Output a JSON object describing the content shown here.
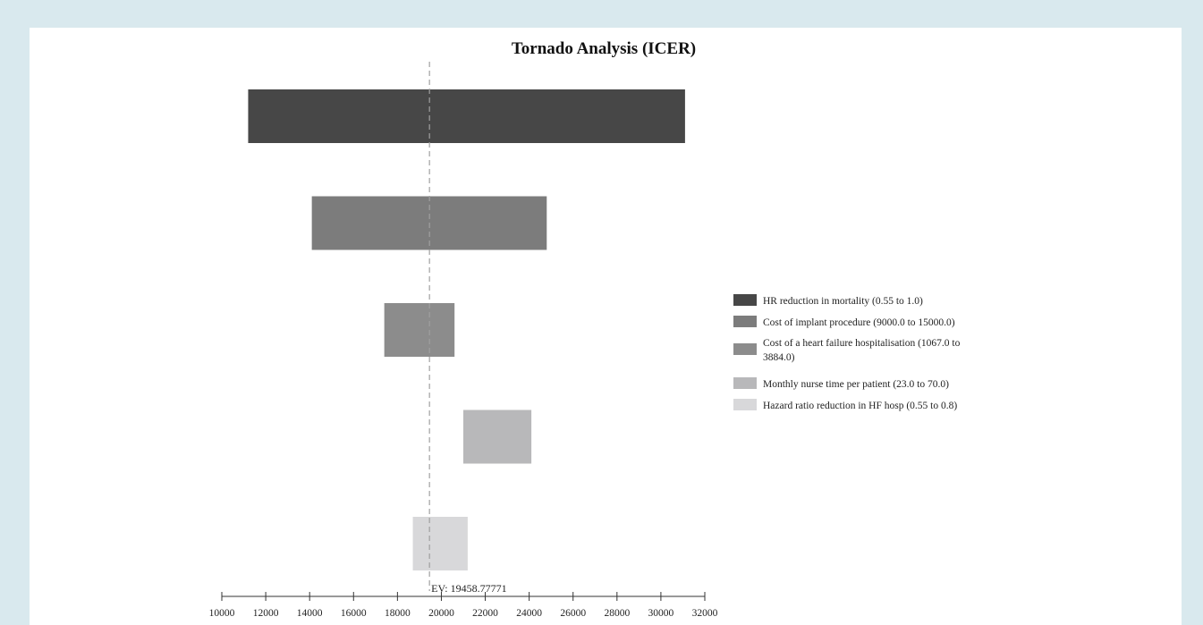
{
  "chart_data": {
    "type": "bar",
    "orientation": "horizontal",
    "chart_style": "tornado",
    "title": "Tornado Analysis (ICER)",
    "xlim": [
      10000,
      32000
    ],
    "x_ticks": [
      10000,
      12000,
      14000,
      16000,
      18000,
      20000,
      22000,
      24000,
      26000,
      28000,
      30000,
      32000
    ],
    "x_tick_labels": [
      "10000",
      "12000",
      "14000",
      "16000",
      "18000",
      "20000",
      "22000",
      "24000",
      "26000",
      "28000",
      "30000",
      "32000"
    ],
    "expected_value": 19458.77771,
    "ev_label": "EV: 19458.77771",
    "legend_position": "right",
    "series": [
      {
        "name": "HR reduction in mortality (0.55 to 1.0)",
        "low": 11200,
        "high": 31100,
        "color": "#474747"
      },
      {
        "name": "Cost of implant procedure (9000.0 to 15000.0)",
        "low": 14100,
        "high": 24800,
        "color": "#7c7c7c"
      },
      {
        "name": "Cost of a heart failure hospitalisation (1067.0 to 3884.0)",
        "name_lines": [
          "Cost of a heart failure hospitalisation (1067.0 to",
          "3884.0)"
        ],
        "low": 17400,
        "high": 20600,
        "color": "#8c8c8c"
      },
      {
        "name": "Monthly nurse time per patient (23.0 to 70.0)",
        "low": 21000,
        "high": 24100,
        "color": "#b8b8ba"
      },
      {
        "name": "Hazard ratio reduction in HF hosp (0.55 to 0.8)",
        "low": 18700,
        "high": 21200,
        "color": "#d8d8da"
      }
    ]
  }
}
